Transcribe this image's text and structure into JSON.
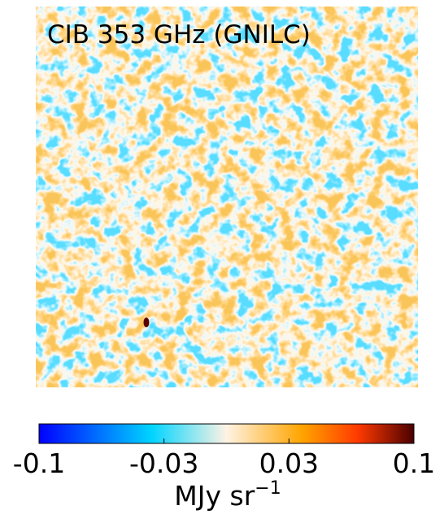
{
  "title": "CIB 353 GHz (GNILC)",
  "colorbar": {
    "range": [
      -0.1,
      0.1
    ],
    "ticks": [
      -0.1,
      -0.03,
      0.03,
      0.1
    ],
    "unit": {
      "text": "MJy sr",
      "exponent": "−1"
    }
  }
}
